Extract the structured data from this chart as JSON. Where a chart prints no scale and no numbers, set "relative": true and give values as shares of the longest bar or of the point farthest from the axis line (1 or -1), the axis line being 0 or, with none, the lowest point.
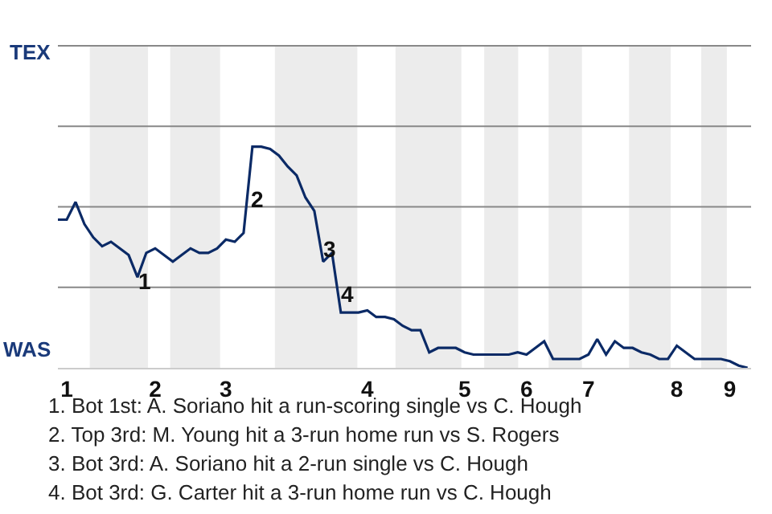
{
  "chart_data": {
    "type": "line",
    "relative": true,
    "categories": [
      null,
      "1",
      null,
      null,
      null,
      null,
      null,
      null,
      null,
      null,
      null,
      "2",
      null,
      null,
      null,
      null,
      null,
      null,
      null,
      "3",
      null,
      null,
      null,
      null,
      null,
      null,
      null,
      null,
      null,
      null,
      null,
      null,
      null,
      null,
      null,
      "4",
      null,
      null,
      null,
      null,
      null,
      null,
      null,
      null,
      null,
      null,
      "5",
      null,
      null,
      null,
      null,
      null,
      null,
      "6",
      null,
      null,
      null,
      null,
      null,
      null,
      "7",
      null,
      null,
      null,
      null,
      null,
      null,
      null,
      null,
      null,
      "8",
      null,
      null,
      null,
      null,
      null,
      "9",
      null,
      null
    ],
    "series": [
      {
        "color": "#0b2a66",
        "values": [
          0.67,
          0.67,
          0.75,
          0.65,
          0.59,
          0.55,
          0.57,
          0.54,
          0.51,
          0.41,
          0.52,
          0.54,
          0.51,
          0.48,
          0.51,
          0.54,
          0.52,
          0.52,
          0.54,
          0.58,
          0.57,
          0.61,
          1,
          1,
          0.99,
          0.96,
          0.91,
          0.87,
          0.77,
          0.71,
          0.48,
          0.52,
          0.25,
          0.25,
          0.25,
          0.26,
          0.23,
          0.23,
          0.22,
          0.19,
          0.17,
          0.17,
          0.07,
          0.09,
          0.09,
          0.09,
          0.07,
          0.06,
          0.06,
          0.06,
          0.06,
          0.06,
          0.07,
          0.06,
          0.09,
          0.12,
          0.04,
          0.04,
          0.04,
          0.04,
          0.06,
          0.13,
          0.06,
          0.12,
          0.09,
          0.09,
          0.07,
          0.06,
          0.04,
          0.04,
          0.1,
          0.07,
          0.04,
          0.04,
          0.04,
          0.04,
          0.03,
          0.01,
          0
        ]
      }
    ],
    "ref_lines": [
      {
        "axis": "y",
        "value": 0.364,
        "color": "#888888"
      },
      {
        "axis": "y",
        "value": 0.728,
        "color": "#888888"
      },
      {
        "axis": "y",
        "value": 1.092,
        "color": "#888888"
      },
      {
        "axis": "y",
        "value": 1.456,
        "color": "#888888"
      }
    ],
    "annotations": [
      "TEX",
      "WAS",
      "1",
      "2",
      "3",
      "4",
      "1. Bot 1st: A. Soriano hit a run-scoring single vs C. Hough",
      "2. Top 3rd: M. Young hit a 3-run home run vs S. Rogers",
      "3. Bot 3rd: A. Soriano hit a 2-run single vs C. Hough",
      "4. Bot 3rd: G. Carter hit a 3-run home run vs C. Hough"
    ]
  }
}
